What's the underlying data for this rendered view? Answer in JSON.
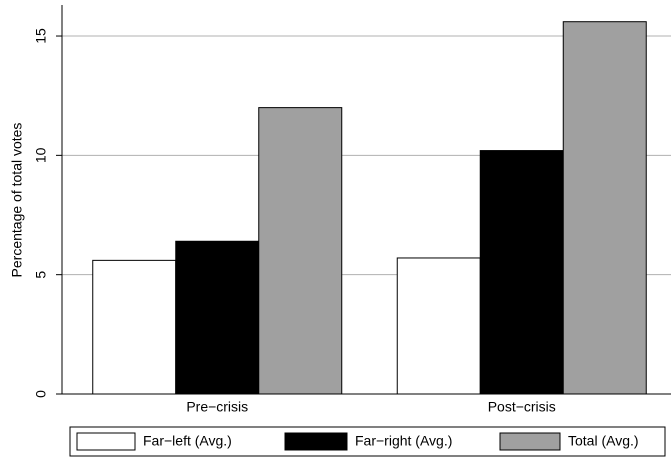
{
  "chart_data": {
    "type": "bar",
    "y_label": "Percentage of total votes",
    "categories": [
      "Pre−crisis",
      "Post−crisis"
    ],
    "series": [
      {
        "name": "Far−left (Avg.)",
        "color": "#ffffff",
        "values": [
          5.6,
          5.7
        ]
      },
      {
        "name": "Far−right (Avg.)",
        "color": "#000000",
        "values": [
          6.4,
          10.2
        ]
      },
      {
        "name": "Total (Avg.)",
        "color": "#a0a0a0",
        "values": [
          12.0,
          15.6
        ]
      }
    ],
    "ylim": [
      0,
      16.3
    ],
    "yticks": [
      0,
      5,
      10,
      15
    ],
    "grid": true,
    "legend": "bottom"
  }
}
